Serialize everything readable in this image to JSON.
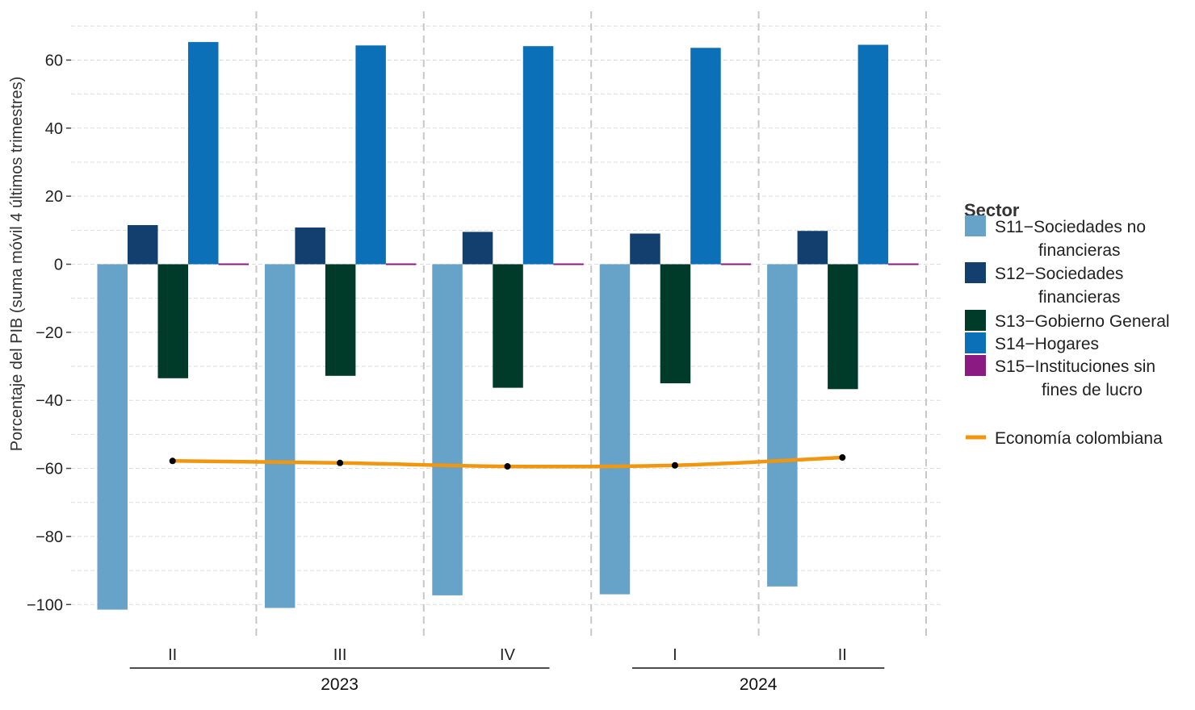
{
  "chart_data": {
    "type": "bar",
    "ylabel": "Porcentaje del PIB (suma móvil 4 últimos trimestres)",
    "ylim": [
      -105,
      70
    ],
    "yticks": [
      60,
      40,
      20,
      0,
      -20,
      -40,
      -60,
      -80,
      -100
    ],
    "ytick_labels": [
      "60",
      "40",
      "20",
      "0",
      "−20",
      "−40",
      "−60",
      "−80",
      "−100"
    ],
    "categories": [
      "II",
      "III",
      "IV",
      "I",
      "II"
    ],
    "years": [
      {
        "label": "2023",
        "categories": [
          "II",
          "III",
          "IV"
        ]
      },
      {
        "label": "2024",
        "categories": [
          "I",
          "II"
        ]
      }
    ],
    "grid": true,
    "legend_position": "right",
    "legend_title": "Sector",
    "series": [
      {
        "name": "S11−Sociedades no financieras",
        "legend_lines": [
          "S11−Sociedades no",
          "financieras"
        ],
        "color": "#67a3c9",
        "values": [
          -101.5,
          -101,
          -97.3,
          -97,
          -94.7
        ]
      },
      {
        "name": "S12−Sociedades financieras",
        "legend_lines": [
          "S12−Sociedades",
          "financieras"
        ],
        "color": "#123f6e",
        "values": [
          11.5,
          10.8,
          9.5,
          9.0,
          9.8
        ]
      },
      {
        "name": "S13−Gobierno General",
        "legend_lines": [
          "S13−Gobierno General"
        ],
        "color": "#003a28",
        "values": [
          -33.5,
          -32.8,
          -36.3,
          -35,
          -36.7
        ]
      },
      {
        "name": "S14−Hogares",
        "legend_lines": [
          "S14−Hogares"
        ],
        "color": "#0b70b8",
        "values": [
          65.3,
          64.3,
          64.1,
          63.6,
          64.5
        ]
      },
      {
        "name": "S15−Instituciones sin fines de lucro",
        "legend_lines": [
          "S15−Instituciones sin",
          "fines de lucro"
        ],
        "color": "#8b1a82",
        "values": [
          0.3,
          0.3,
          0.3,
          0.3,
          0.3
        ]
      }
    ],
    "line_series": {
      "name": "Economía colombiana",
      "color": "#f0960f",
      "values": [
        -57.8,
        -58.4,
        -59.4,
        -59.1,
        -56.8
      ]
    }
  }
}
